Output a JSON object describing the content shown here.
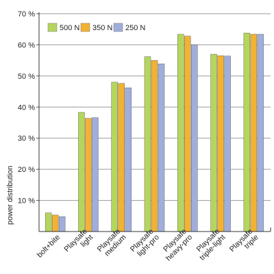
{
  "chart_data": {
    "type": "bar",
    "title": "",
    "xlabel": "",
    "ylabel": "power distribution",
    "ylim": [
      0,
      70
    ],
    "yticks": [
      10,
      20,
      30,
      40,
      50,
      60,
      70
    ],
    "ytick_labels": [
      "10 %",
      "20 %",
      "30 %",
      "40 %",
      "50 %",
      "60 %",
      "70 %"
    ],
    "grid": true,
    "legend_position": "top-left",
    "categories": [
      [
        "bolt+bite"
      ],
      [
        "Playsafe",
        "light"
      ],
      [
        "Playsafe",
        "medium"
      ],
      [
        "Playsafe",
        "light-pro"
      ],
      [
        "Playsafe",
        "heavy-pro"
      ],
      [
        "Playsafe",
        "triple-light"
      ],
      [
        "Playsafe",
        "triple"
      ]
    ],
    "series": [
      {
        "name": "500 N",
        "color": "#b5d65c",
        "values": [
          6.0,
          38.3,
          48.0,
          56.2,
          63.4,
          57.0,
          63.8
        ]
      },
      {
        "name": "350 N",
        "color": "#f2b233",
        "values": [
          5.3,
          36.4,
          47.6,
          55.0,
          62.8,
          56.5,
          63.4
        ]
      },
      {
        "name": "250 N",
        "color": "#a0aedb",
        "values": [
          4.8,
          36.6,
          46.2,
          53.9,
          60.0,
          56.4,
          63.4
        ]
      }
    ]
  }
}
